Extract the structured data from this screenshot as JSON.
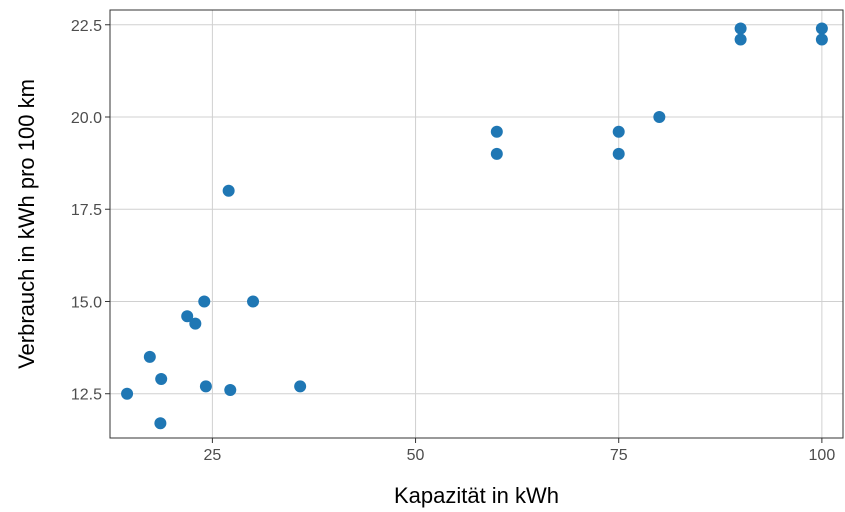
{
  "chart_data": {
    "type": "scatter",
    "title": "",
    "xlabel": "Kapazität in kWh",
    "ylabel": "Verbrauch in kWh pro 100 km",
    "xlim": [
      12.4,
      102.6
    ],
    "ylim": [
      11.3,
      22.9
    ],
    "x_ticks": [
      25,
      50,
      75,
      100
    ],
    "x_tick_labels": [
      "25",
      "50",
      "75",
      "100"
    ],
    "y_ticks": [
      12.5,
      15.0,
      17.5,
      20.0,
      22.5
    ],
    "y_tick_labels": [
      "12.5",
      "15.0",
      "17.5",
      "20.0",
      "22.5"
    ],
    "grid": true,
    "point_color": "#1f77b4",
    "points": [
      {
        "x": 14.5,
        "y": 12.5
      },
      {
        "x": 17.3,
        "y": 13.5
      },
      {
        "x": 18.7,
        "y": 12.9
      },
      {
        "x": 18.6,
        "y": 11.7
      },
      {
        "x": 21.9,
        "y": 14.6
      },
      {
        "x": 22.9,
        "y": 14.4
      },
      {
        "x": 24.0,
        "y": 15.0
      },
      {
        "x": 24.2,
        "y": 12.7
      },
      {
        "x": 27.0,
        "y": 18.0
      },
      {
        "x": 27.2,
        "y": 12.6
      },
      {
        "x": 30.0,
        "y": 15.0
      },
      {
        "x": 35.8,
        "y": 12.7
      },
      {
        "x": 60.0,
        "y": 19.6
      },
      {
        "x": 60.0,
        "y": 19.0
      },
      {
        "x": 75.0,
        "y": 19.6
      },
      {
        "x": 75.0,
        "y": 19.0
      },
      {
        "x": 80.0,
        "y": 20.0
      },
      {
        "x": 90.0,
        "y": 22.4
      },
      {
        "x": 90.0,
        "y": 22.1
      },
      {
        "x": 100.0,
        "y": 22.4
      },
      {
        "x": 100.0,
        "y": 22.1
      }
    ]
  }
}
